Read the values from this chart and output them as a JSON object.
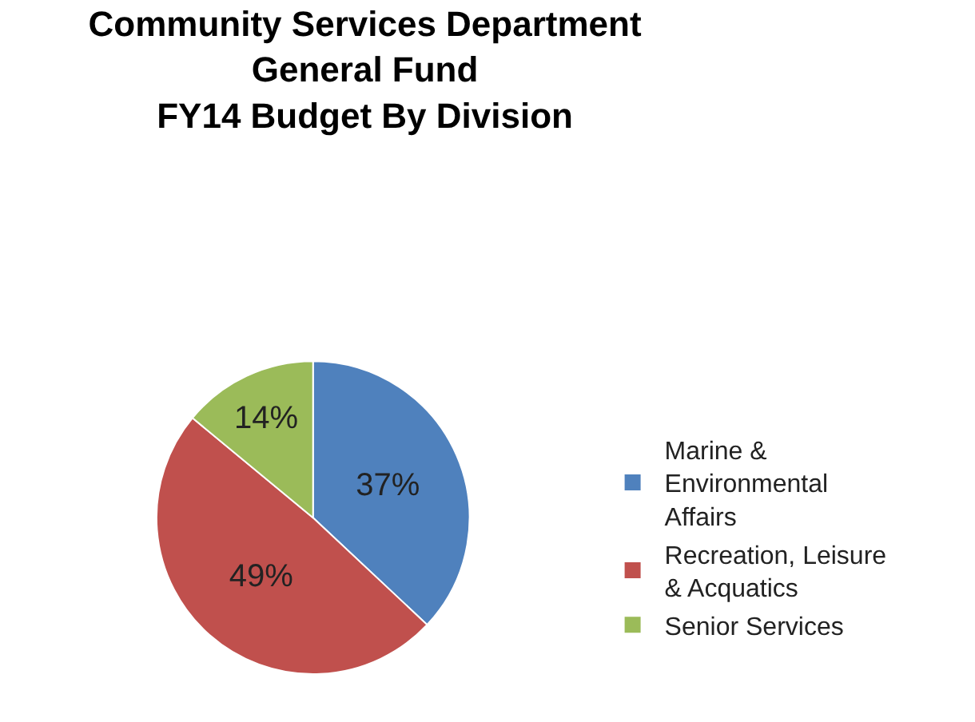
{
  "chart_data": {
    "type": "pie",
    "title": "Community Services Department\nGeneral Fund\nFY14 Budget By Division",
    "categories": [
      "Marine & Environmental Affairs",
      "Recreation, Leisure & Acquatics",
      "Senior Services"
    ],
    "values": [
      37,
      49,
      14
    ],
    "colors": [
      "#4f81bd",
      "#c0504d",
      "#9bbb59"
    ],
    "value_labels": [
      "37%",
      "49%",
      "14%"
    ],
    "legend": "right"
  }
}
